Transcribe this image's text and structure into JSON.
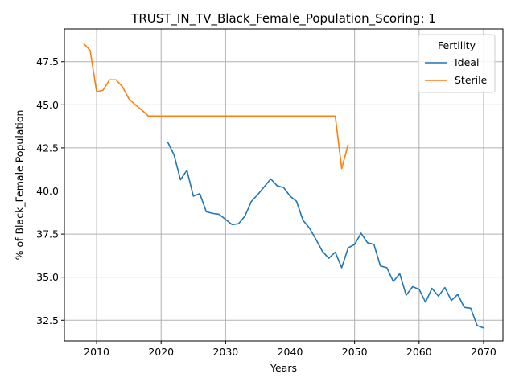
{
  "chart_data": {
    "type": "line",
    "title": "TRUST_IN_TV_Black_Female_Population_Scoring: 1",
    "xlabel": "Years",
    "ylabel": "% of Black_Female Population",
    "xlim": [
      2005,
      2073
    ],
    "ylim": [
      31.3,
      49.4
    ],
    "xticks": [
      2010,
      2020,
      2030,
      2040,
      2050,
      2060,
      2070
    ],
    "yticks": [
      32.5,
      35.0,
      37.5,
      40.0,
      42.5,
      45.0,
      47.5
    ],
    "ytick_labels": [
      "32.5",
      "35.0",
      "37.5",
      "40.0",
      "42.5",
      "45.0",
      "47.5"
    ],
    "grid": true,
    "legend": {
      "title": "Fertility",
      "position": "top-right"
    },
    "series": [
      {
        "name": "Ideal",
        "color": "#1f77b4",
        "x": [
          2021,
          2022,
          2023,
          2024,
          2025,
          2026,
          2027,
          2028,
          2029,
          2030,
          2031,
          2032,
          2033,
          2034,
          2035,
          2036,
          2037,
          2038,
          2039,
          2040,
          2041,
          2042,
          2043,
          2044,
          2045,
          2046,
          2047,
          2048,
          2049,
          2050,
          2051,
          2052,
          2053,
          2054,
          2055,
          2056,
          2057,
          2058,
          2059,
          2060,
          2061,
          2062,
          2063,
          2064,
          2065,
          2066,
          2067,
          2068,
          2069,
          2070
        ],
        "values": [
          42.85,
          42.1,
          40.65,
          41.2,
          39.7,
          39.85,
          38.8,
          38.7,
          38.65,
          38.35,
          38.05,
          38.1,
          38.55,
          39.4,
          39.8,
          40.25,
          40.7,
          40.3,
          40.2,
          39.7,
          39.4,
          38.3,
          37.85,
          37.2,
          36.5,
          36.1,
          36.45,
          35.55,
          36.7,
          36.9,
          37.55,
          37.0,
          36.9,
          35.65,
          35.55,
          34.75,
          35.2,
          33.95,
          34.45,
          34.3,
          33.55,
          34.35,
          33.9,
          34.4,
          33.65,
          34.0,
          33.25,
          33.2,
          32.2,
          32.05
        ]
      },
      {
        "name": "Sterile",
        "color": "#ff7f0e",
        "x": [
          2008,
          2009,
          2010,
          2011,
          2012,
          2013,
          2014,
          2015,
          2016,
          2017,
          2018,
          2019,
          2020,
          2021,
          2022,
          2023,
          2024,
          2025,
          2026,
          2027,
          2028,
          2029,
          2030,
          2031,
          2032,
          2033,
          2034,
          2035,
          2036,
          2037,
          2038,
          2039,
          2040,
          2041,
          2042,
          2043,
          2044,
          2045,
          2046,
          2047,
          2048,
          2049
        ],
        "values": [
          48.55,
          48.15,
          45.75,
          45.85,
          46.45,
          46.45,
          46.05,
          45.35,
          45.0,
          44.7,
          44.35,
          44.35,
          44.35,
          44.35,
          44.35,
          44.35,
          44.35,
          44.35,
          44.35,
          44.35,
          44.35,
          44.35,
          44.35,
          44.35,
          44.35,
          44.35,
          44.35,
          44.35,
          44.35,
          44.35,
          44.35,
          44.35,
          44.35,
          44.35,
          44.35,
          44.35,
          44.35,
          44.35,
          44.35,
          44.35,
          41.3,
          42.7
        ]
      }
    ]
  }
}
